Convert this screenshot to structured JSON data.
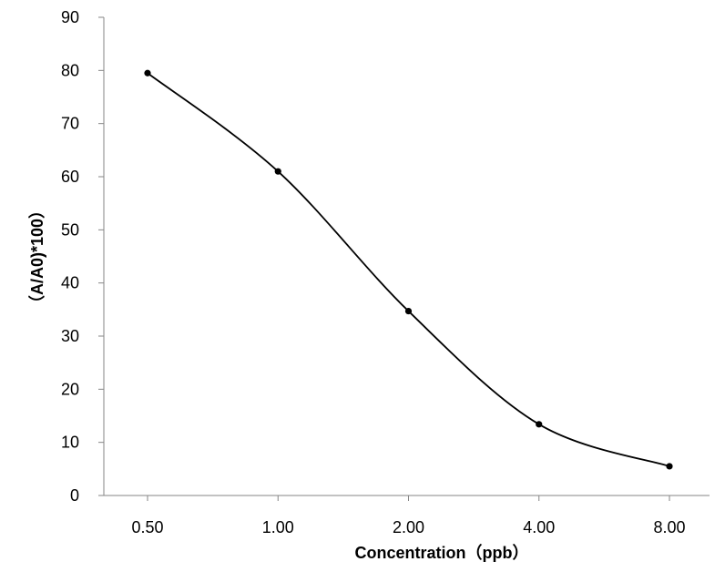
{
  "chart_data": {
    "type": "line",
    "categories": [
      "0.50",
      "1.00",
      "2.00",
      "4.00",
      "8.00"
    ],
    "series": [
      {
        "values": [
          79.5,
          61.0,
          34.7,
          13.4,
          5.5
        ],
        "color": "#000000"
      }
    ],
    "title": "",
    "xlabel": "Concentration（ppb）",
    "ylabel": "（A/A0)*100）",
    "ylim": [
      0,
      90
    ],
    "yticks": [
      "0",
      "10",
      "20",
      "30",
      "40",
      "50",
      "60",
      "70",
      "80",
      "90"
    ],
    "smooth": true,
    "markers": true,
    "grid": false,
    "legend": "none"
  }
}
